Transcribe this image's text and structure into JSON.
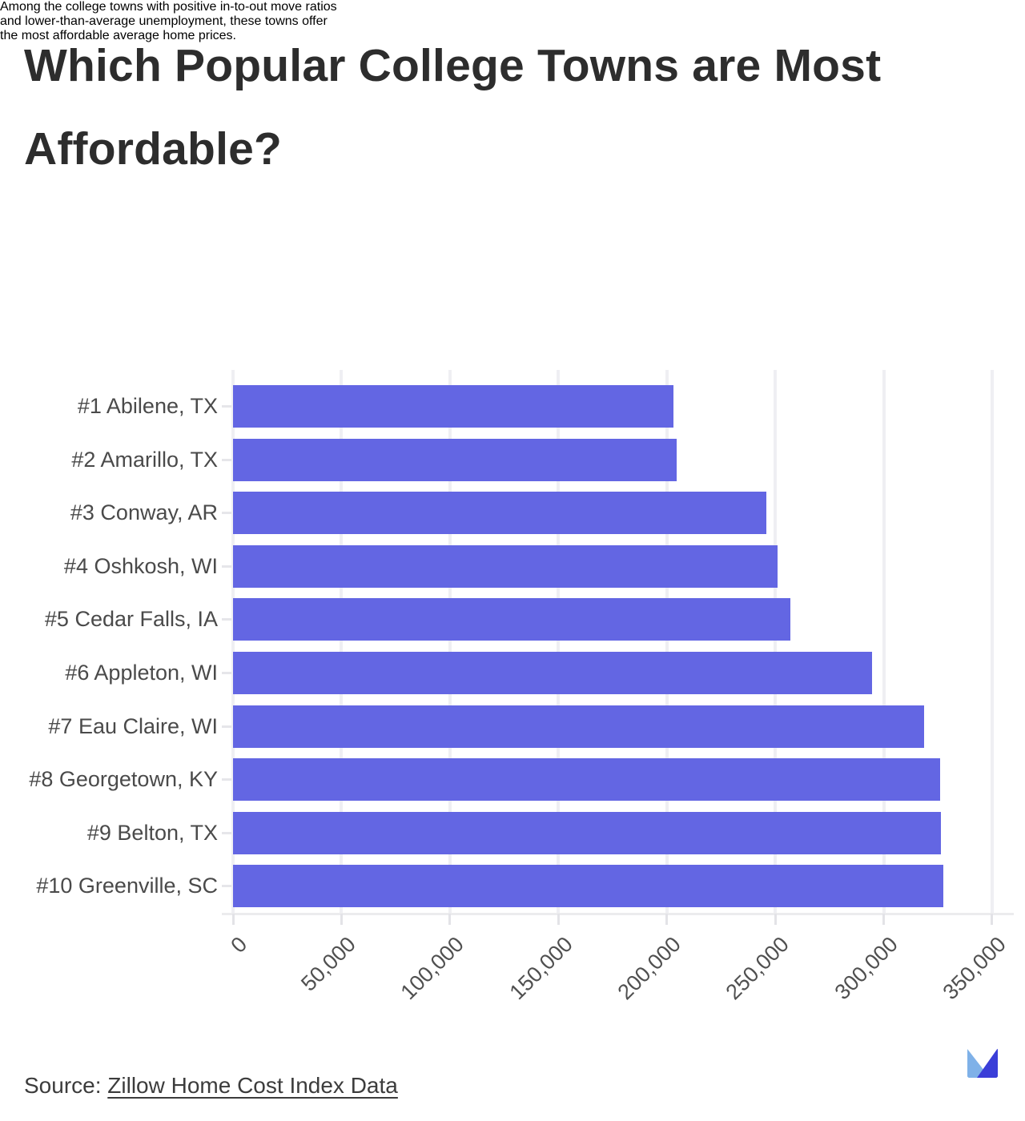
{
  "title": {
    "line1": "Which Popular College Towns are Most",
    "line2": "Affordable?"
  },
  "subtitle": {
    "lines": [
      "Among the college towns with positive in-to-out move ratios",
      "and lower-than-average unemployment, these towns offer",
      "the most affordable average home prices."
    ]
  },
  "chart_data": {
    "type": "bar",
    "orientation": "horizontal",
    "categories": [
      "#1 Abilene, TX",
      "#2 Amarillo, TX",
      "#3 Conway, AR",
      "#4 Oshkosh, WI",
      "#5 Cedar Falls, IA",
      "#6 Appleton, WI",
      "#7 Eau Claire, WI",
      "#8 Georgetown, KY",
      "#9 Belton, TX",
      "#10 Greenville, SC"
    ],
    "values": [
      203000,
      204500,
      246000,
      251000,
      257000,
      294500,
      318500,
      326000,
      326500,
      327500
    ],
    "x_ticks": [
      0,
      50000,
      100000,
      150000,
      200000,
      250000,
      300000,
      350000
    ],
    "x_tick_labels": [
      "0",
      "50,000",
      "100,000",
      "150,000",
      "200,000",
      "250,000",
      "300,000",
      "350,000"
    ],
    "xlim": [
      0,
      360000
    ],
    "grid": true,
    "legend": false,
    "bar_color": "#6366e3",
    "title": "",
    "xlabel": "",
    "ylabel": ""
  },
  "footer": {
    "source_prefix": "Source: ",
    "source_link_text": "Zillow Home Cost Index Data"
  },
  "logo": {
    "label": "move-logo",
    "color_left": "#7fb1e8",
    "color_right": "#3a3ed8"
  }
}
